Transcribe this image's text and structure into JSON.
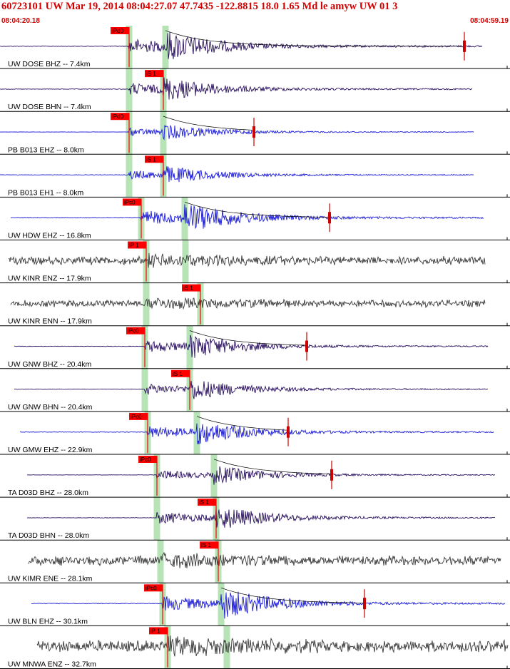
{
  "header": {
    "title": "60723101 UW Mar 19, 2014 08:04:27.07    47.7435 -122.8815 18.0 1.65 Md le amyw UW 01    3",
    "start_time": "08:04:20.18",
    "end_time": "08:04:59.19"
  },
  "colors": {
    "title": "#d40000",
    "pick_box": "#ff0000",
    "pick_window": "#9fd99f",
    "trace_blue": "#1a1ad8",
    "trace_purple": "#2a1060",
    "trace_gray": "#3a3a3a",
    "coda": "#cc0000"
  },
  "channels": [
    {
      "label": "UW DOSE BHZ -- 7.4km",
      "trace": "purple",
      "pick": "iPd0",
      "amp": 1.0,
      "coda": true
    },
    {
      "label": "UW DOSE BHN -- 7.4km",
      "trace": "purple",
      "pick": "iS 1",
      "amp": 0.8,
      "coda": false
    },
    {
      "label": "PB B013 EHZ -- 8.0km",
      "trace": "blue",
      "pick": "iPd0",
      "amp": 0.5,
      "coda": true
    },
    {
      "label": "PB B013 EH1 -- 8.0km",
      "trace": "blue",
      "pick": "iS 1",
      "amp": 0.6,
      "coda": false
    },
    {
      "label": "UW HDW EHZ -- 16.8km",
      "trace": "blue",
      "pick": "iPc0",
      "amp": 1.0,
      "coda": true
    },
    {
      "label": "UW KINR ENZ -- 17.9km",
      "trace": "gray",
      "pick": "iP 1",
      "amp": 0.7,
      "coda": false
    },
    {
      "label": "UW KINR ENN -- 17.9km",
      "trace": "gray",
      "pick": "iS 1",
      "amp": 0.6,
      "coda": false
    },
    {
      "label": "UW GNW BHZ -- 20.4km",
      "trace": "purple",
      "pick": "iPc0",
      "amp": 0.8,
      "coda": true
    },
    {
      "label": "UW GNW BHN -- 20.4km",
      "trace": "purple",
      "pick": "iS 1",
      "amp": 0.7,
      "coda": false
    },
    {
      "label": "UW GMW EHZ -- 22.9km",
      "trace": "blue",
      "pick": "iPc0",
      "amp": 0.8,
      "coda": true
    },
    {
      "label": "TA D03D BHZ -- 28.0km",
      "trace": "purple",
      "pick": "iPc0",
      "amp": 0.6,
      "coda": true
    },
    {
      "label": "TA D03D BHN -- 28.0km",
      "trace": "purple",
      "pick": "iS 1",
      "amp": 0.8,
      "coda": false
    },
    {
      "label": "UW KIMR ENE -- 28.1km",
      "trace": "gray",
      "pick": "iS 1",
      "amp": 0.8,
      "coda": false
    },
    {
      "label": "UW BLN EHZ -- 30.1km",
      "trace": "blue",
      "pick": "iPc0",
      "amp": 1.0,
      "coda": true
    },
    {
      "label": "UW MNWA ENZ -- 32.7km",
      "trace": "gray",
      "pick": "iP 1",
      "amp": 1.0,
      "coda": false
    }
  ]
}
